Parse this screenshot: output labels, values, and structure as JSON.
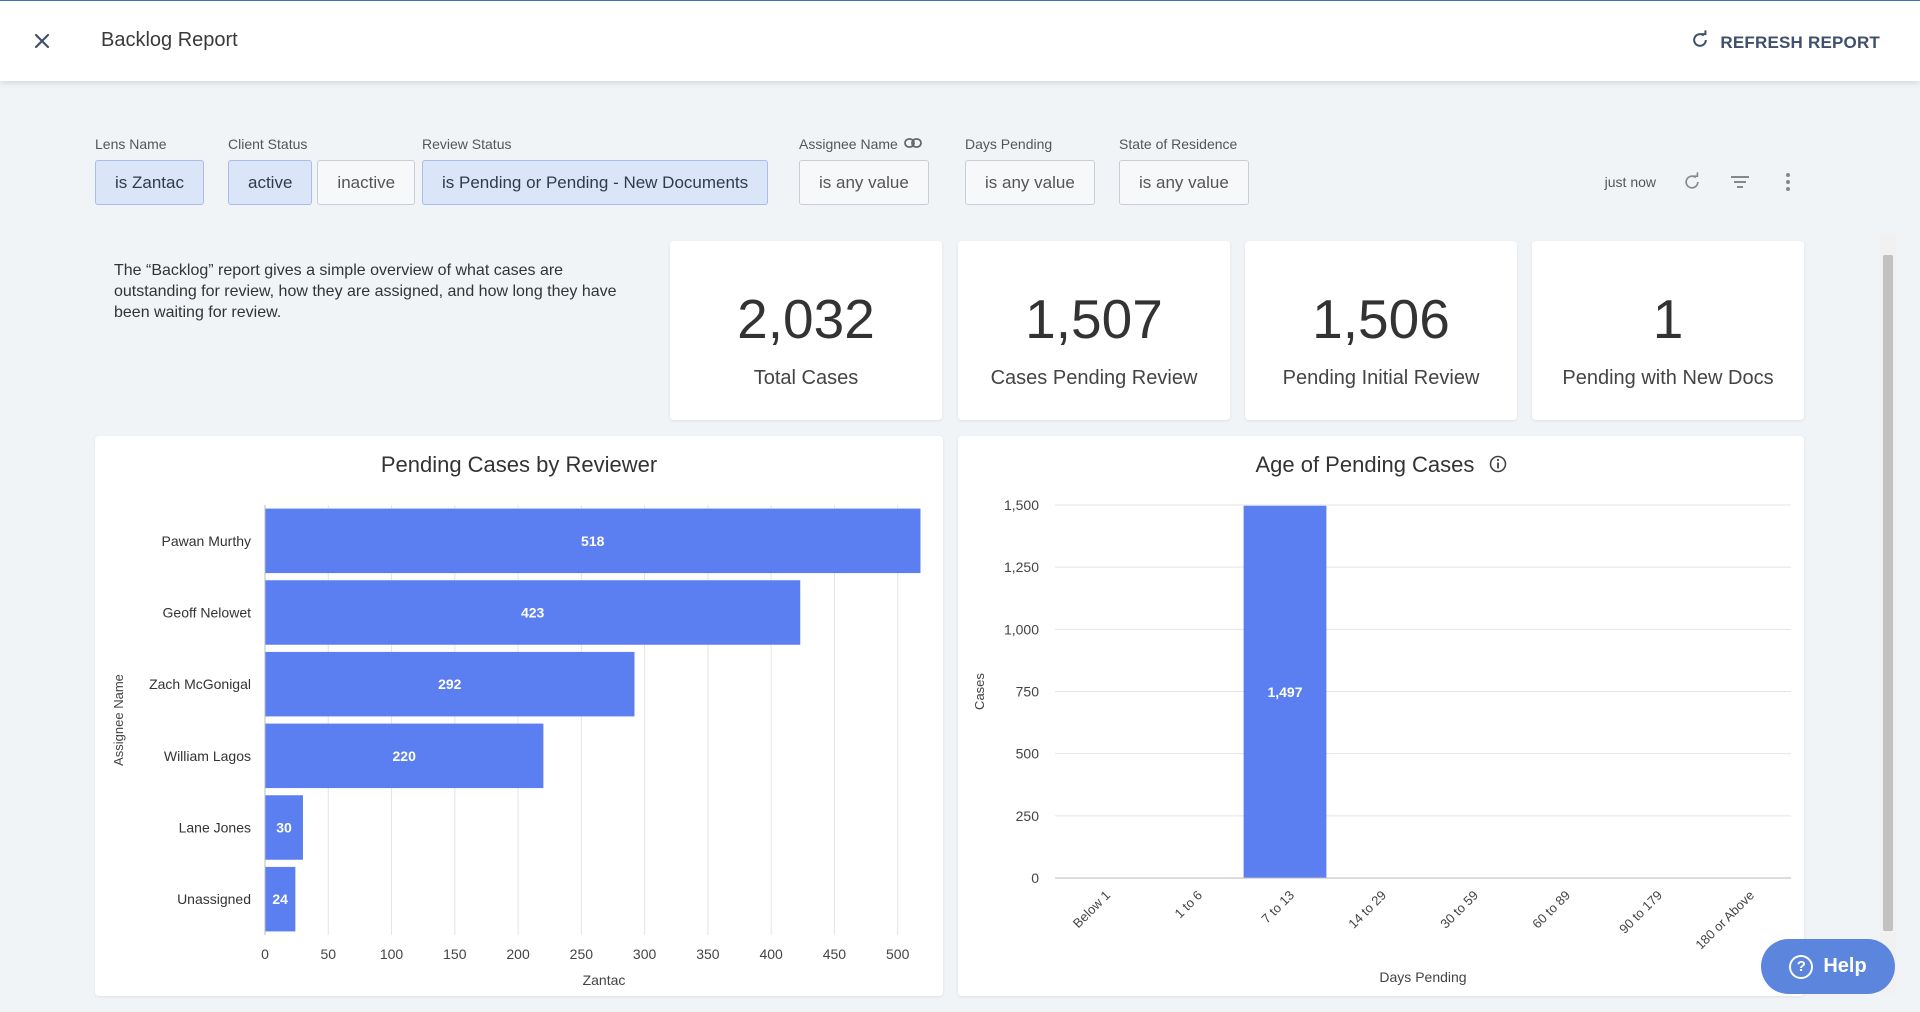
{
  "header": {
    "title": "Backlog Report",
    "refresh_label": "REFRESH REPORT"
  },
  "filters": [
    {
      "label": "Lens Name",
      "chips": [
        {
          "text": "is Zantac",
          "selected": true
        }
      ]
    },
    {
      "label": "Client Status",
      "chips": [
        {
          "text": "active",
          "selected": true
        },
        {
          "text": "inactive",
          "selected": false
        }
      ]
    },
    {
      "label": "Review Status",
      "chips": [
        {
          "text": "is Pending or Pending - New Documents",
          "selected": true
        }
      ]
    },
    {
      "label": "Assignee Name",
      "chips": [
        {
          "text": "is any value",
          "selected": false
        }
      ]
    },
    {
      "label": "Days Pending",
      "chips": [
        {
          "text": "is any value",
          "selected": false
        }
      ]
    },
    {
      "label": "State of Residence",
      "chips": [
        {
          "text": "is any value",
          "selected": false
        }
      ]
    }
  ],
  "toolbar": {
    "updated": "just now"
  },
  "description": "The “Backlog” report gives a simple overview of what cases are outstanding for review, how they are assigned, and how long they have been waiting for review.",
  "kpis": [
    {
      "value": "2,032",
      "label": "Total Cases"
    },
    {
      "value": "1,507",
      "label": "Cases Pending Review"
    },
    {
      "value": "1,506",
      "label": "Pending Initial Review"
    },
    {
      "value": "1",
      "label": "Pending with New Docs"
    }
  ],
  "help": {
    "label": "Help"
  },
  "colors": {
    "bar": "#5b7ff0",
    "accent": "#40506b",
    "help": "#5c86dd"
  },
  "chart_data": [
    {
      "type": "bar",
      "orientation": "horizontal",
      "title": "Pending Cases by Reviewer",
      "xlabel": "Zantac",
      "ylabel": "Assignee Name",
      "categories": [
        "Pawan Murthy",
        "Geoff Nelowet",
        "Zach McGonigal",
        "William Lagos",
        "Lane Jones",
        "Unassigned"
      ],
      "values": [
        518,
        423,
        292,
        220,
        30,
        24
      ],
      "xlim": [
        0,
        520
      ],
      "ticks": [
        0,
        50,
        100,
        150,
        200,
        250,
        300,
        350,
        400,
        450,
        500
      ],
      "grid": true,
      "legend": "none"
    },
    {
      "type": "bar",
      "title": "Age of Pending Cases",
      "xlabel": "Days Pending",
      "ylabel": "Cases",
      "categories": [
        "Below 1",
        "1 to 6",
        "7 to 13",
        "14 to 29",
        "30 to 59",
        "60 to 89",
        "90 to 179",
        "180 or Above"
      ],
      "values": [
        0,
        0,
        1497,
        0,
        0,
        0,
        0,
        0
      ],
      "ylim": [
        0,
        1500
      ],
      "ticks": [
        "0",
        "250",
        "500",
        "750",
        "1,000",
        "1,250",
        "1,500"
      ],
      "tick_values": [
        0,
        250,
        500,
        750,
        1000,
        1250,
        1500
      ],
      "value_labels": [
        "",
        "",
        "1,497",
        "",
        "",
        "",
        "",
        ""
      ],
      "grid": true,
      "legend": "none"
    }
  ]
}
